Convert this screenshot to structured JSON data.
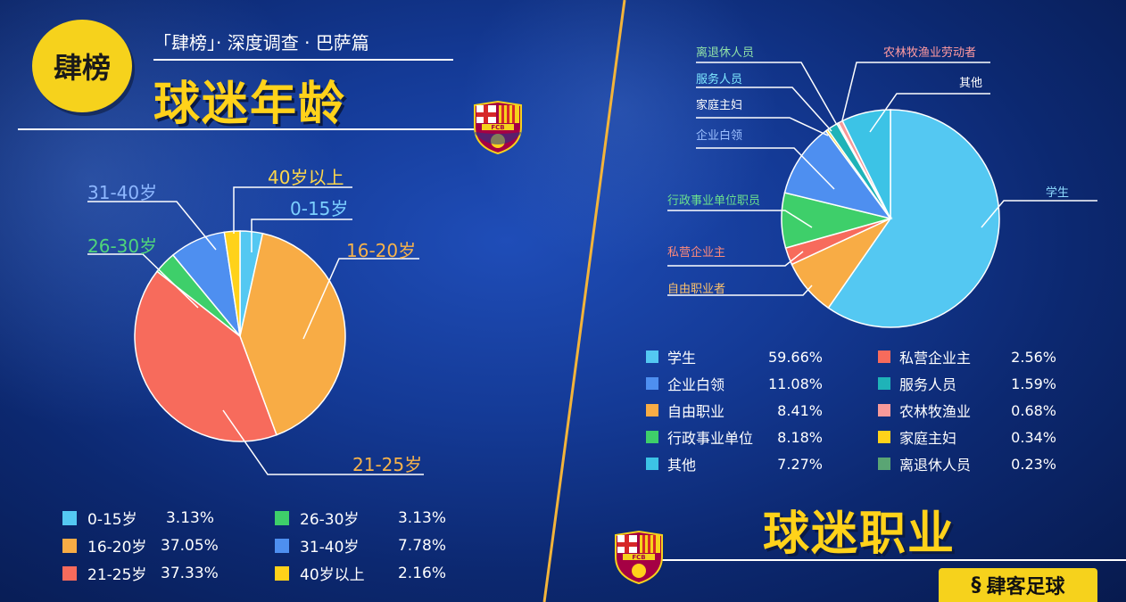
{
  "header": {
    "badge_text": "肆榜",
    "subtitle": "「肆榜」· 深度调查 · 巴萨篇",
    "age_title": "球迷年龄",
    "occupation_title": "球迷职业",
    "brand": "肆客足球"
  },
  "crest": {
    "text": "FCB"
  },
  "chart_data": [
    {
      "type": "pie",
      "title": "球迷年龄",
      "legend_position": "bottom",
      "slices": [
        {
          "label": "0-15岁",
          "value": 3.13,
          "display": "3.13%",
          "color": "#54c8f2",
          "label_color": "#7cd0ff"
        },
        {
          "label": "16-20岁",
          "value": 37.05,
          "display": "37.05%",
          "color": "#f8ac45",
          "label_color": "#f8b34a"
        },
        {
          "label": "21-25岁",
          "value": 37.33,
          "display": "37.33%",
          "color": "#f76b5c",
          "label_color": "#f8b34a"
        },
        {
          "label": "26-30岁",
          "value": 3.13,
          "display": "3.13%",
          "color": "#3ecf6a",
          "label_color": "#4fd67a"
        },
        {
          "label": "31-40岁",
          "value": 7.78,
          "display": "7.78%",
          "color": "#4e8ff0",
          "label_color": "#8db7ff"
        },
        {
          "label": "40岁以上",
          "value": 2.16,
          "display": "2.16%",
          "color": "#ffd21a",
          "label_color": "#ffd84a"
        }
      ]
    },
    {
      "type": "pie",
      "title": "球迷职业",
      "legend_position": "bottom",
      "slices": [
        {
          "label": "学生",
          "legend": "学生",
          "value": 59.66,
          "display": "59.66%",
          "color": "#54c8f2",
          "label_color": "#8fdcff"
        },
        {
          "label": "自由职业者",
          "legend": "自由职业",
          "value": 8.41,
          "display": "8.41%",
          "color": "#f8ac45",
          "label_color": "#ffc36a"
        },
        {
          "label": "私营企业主",
          "legend": "私营企业主",
          "value": 2.56,
          "display": "2.56%",
          "color": "#f76b5c",
          "label_color": "#ff8a7a"
        },
        {
          "label": "行政事业单位职员",
          "legend": "行政事业单位",
          "value": 8.18,
          "display": "8.18%",
          "color": "#3ecf6a",
          "label_color": "#6be08e"
        },
        {
          "label": "企业白领",
          "legend": "企业白领",
          "value": 11.08,
          "display": "11.08%",
          "color": "#4e8ff0",
          "label_color": "#9cc0ff"
        },
        {
          "label": "家庭主妇",
          "legend": "家庭主妇",
          "value": 0.34,
          "display": "0.34%",
          "color": "#ffd21a",
          "label_color": "#ffffff"
        },
        {
          "label": "服务人员",
          "legend": "服务人员",
          "value": 1.59,
          "display": "1.59%",
          "color": "#1fb3b8",
          "label_color": "#7fe8ff"
        },
        {
          "label": "离退休人员",
          "legend": "离退休人员",
          "value": 0.23,
          "display": "0.23%",
          "color": "#5aa574",
          "label_color": "#8fe0a8"
        },
        {
          "label": "农林牧渔业劳动者",
          "legend": "农林牧渔业",
          "value": 0.68,
          "display": "0.68%",
          "color": "#f79a9a",
          "label_color": "#ff9aa0"
        },
        {
          "label": "其他",
          "legend": "其他",
          "value": 7.27,
          "display": "7.27%",
          "color": "#3cc3e6",
          "label_color": "#ffffff"
        }
      ]
    }
  ]
}
